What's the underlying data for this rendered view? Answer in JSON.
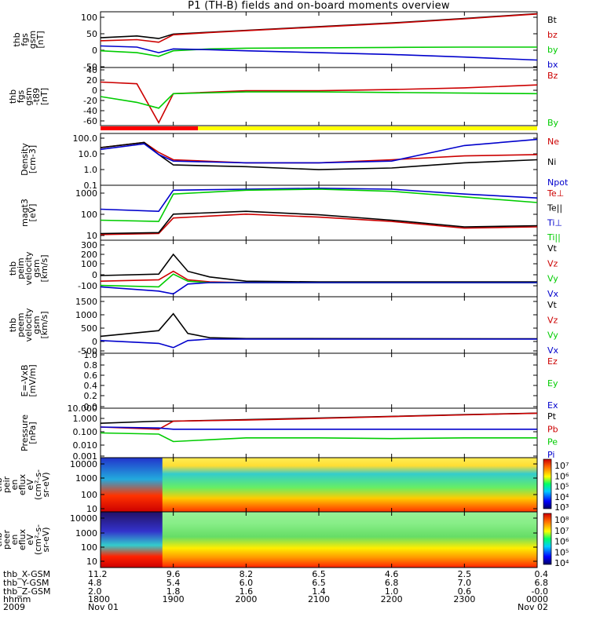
{
  "title": "P1 (TH-B) fields and on-board moments overview",
  "panels": [
    {
      "id": "fgs-gsm",
      "ylabel": [
        "thb",
        "fgs",
        "gsm",
        "[nT]"
      ],
      "yticks": [
        "100",
        "50",
        "0",
        "-50"
      ],
      "legend": [
        {
          "text": "Bt",
          "color": "#000000"
        },
        {
          "text": "bz",
          "color": "#cc0000"
        },
        {
          "text": "by",
          "color": "#00cc00"
        },
        {
          "text": "bx",
          "color": "#0000cc"
        }
      ]
    },
    {
      "id": "fgs-gsm-t89",
      "ylabel": [
        "thb",
        "fgs",
        "gsm",
        "-t89",
        "[nT]"
      ],
      "yticks": [
        "40",
        "20",
        "0",
        "-20",
        "-40",
        "-60"
      ],
      "legend": [
        {
          "text": "Bz",
          "color": "#cc0000"
        },
        {
          "text": "By",
          "color": "#00cc00"
        }
      ]
    },
    {
      "id": "density",
      "ylabel": [
        "Density",
        "[cm-3]"
      ],
      "yticks": [
        "100.0",
        "10.0",
        "1.0",
        "0.1"
      ],
      "legend": [
        {
          "text": "Ne",
          "color": "#cc0000"
        },
        {
          "text": "Ni",
          "color": "#000000"
        },
        {
          "text": "Npot",
          "color": "#0000cc"
        }
      ]
    },
    {
      "id": "temperature",
      "ylabel": [
        "magt3",
        "[eV]"
      ],
      "yticks": [
        "1000",
        "100",
        "10"
      ],
      "legend": [
        {
          "text": "Te⊥",
          "color": "#cc0000"
        },
        {
          "text": "Te||",
          "color": "#000000"
        },
        {
          "text": "Ti⊥",
          "color": "#0000cc"
        },
        {
          "text": "Ti||",
          "color": "#00cc00"
        }
      ]
    },
    {
      "id": "peim-velocity",
      "ylabel": [
        "thb",
        "peim",
        "velocity",
        "gsm",
        "[km/s]"
      ],
      "yticks": [
        "300",
        "200",
        "100",
        "0",
        "-100"
      ],
      "legend": [
        {
          "text": "Vt",
          "color": "#000000"
        },
        {
          "text": "Vz",
          "color": "#cc0000"
        },
        {
          "text": "Vy",
          "color": "#00cc00"
        },
        {
          "text": "Vx",
          "color": "#0000cc"
        }
      ]
    },
    {
      "id": "peem-velocity",
      "ylabel": [
        "thb",
        "peem",
        "velocity",
        "gsm",
        "[km/s]"
      ],
      "yticks": [
        "1500",
        "1000",
        "500",
        "0",
        "-500"
      ],
      "legend": [
        {
          "text": "Vt",
          "color": "#000000"
        },
        {
          "text": "Vz",
          "color": "#cc0000"
        },
        {
          "text": "Vy",
          "color": "#00cc00"
        },
        {
          "text": "Vx",
          "color": "#0000cc"
        }
      ]
    },
    {
      "id": "efield",
      "ylabel": [
        "E=-VxB",
        "[mV/m]"
      ],
      "yticks": [
        "1.0",
        "0.8",
        "0.6",
        "0.4",
        "0.2",
        "0.0"
      ],
      "legend": [
        {
          "text": "Ez",
          "color": "#cc0000"
        },
        {
          "text": "Ey",
          "color": "#00cc00"
        },
        {
          "text": "Ex",
          "color": "#0000cc"
        }
      ]
    },
    {
      "id": "pressure",
      "ylabel": [
        "Pressure",
        "[nPa]"
      ],
      "yticks": [
        "10.000",
        "1.000",
        "0.100",
        "0.010",
        "0.001"
      ],
      "legend": [
        {
          "text": "Pt",
          "color": "#000000"
        },
        {
          "text": "Pb",
          "color": "#cc0000"
        },
        {
          "text": "Pe",
          "color": "#00cc00"
        },
        {
          "text": "Pi",
          "color": "#0000cc"
        }
      ]
    },
    {
      "id": "peir-spectrogram",
      "ylabel": [
        "thb",
        "peir",
        "en",
        "eflux",
        "eV",
        "(cm²-s-",
        "sr-eV)"
      ],
      "yticks": [
        "10000",
        "1000",
        "100",
        "10"
      ],
      "cbticks": [
        "10⁷",
        "10⁶",
        "10⁵",
        "10⁴",
        "10³"
      ]
    },
    {
      "id": "peer-spectrogram",
      "ylabel": [
        "thb",
        "peer",
        "en",
        "eflux",
        "eV",
        "(cm²-s-",
        "sr-eV)"
      ],
      "yticks": [
        "10000",
        "1000",
        "100",
        "10"
      ],
      "cbticks": [
        "10⁸",
        "10⁷",
        "10⁶",
        "10⁵",
        "10⁴"
      ]
    }
  ],
  "footer": {
    "row_labels": [
      "thb_X-GSM",
      "thb_Y-GSM",
      "thb_Z-GSM",
      "hhmm",
      "2009"
    ],
    "columns": [
      {
        "values": [
          "11.2",
          "4.8",
          "2.0",
          "1800",
          "Nov 01"
        ]
      },
      {
        "values": [
          "9.6",
          "5.4",
          "1.8",
          "1900",
          ""
        ]
      },
      {
        "values": [
          "8.2",
          "6.0",
          "1.6",
          "2000",
          ""
        ]
      },
      {
        "values": [
          "6.5",
          "6.5",
          "1.4",
          "2100",
          ""
        ]
      },
      {
        "values": [
          "4.6",
          "6.8",
          "1.0",
          "2200",
          ""
        ]
      },
      {
        "values": [
          "2.5",
          "7.0",
          "0.6",
          "2300",
          ""
        ]
      },
      {
        "values": [
          "0.4",
          "6.8",
          "-0.0",
          "0000",
          "Nov 02"
        ]
      }
    ]
  },
  "chart_data": {
    "type": "line",
    "title": "P1 (TH-B) fields and on-board moments overview",
    "x_range": [
      "2009-11-01 18:00",
      "2009-11-02 00:00"
    ],
    "x_tick_labels": [
      "1800",
      "1900",
      "2000",
      "2100",
      "2200",
      "2300",
      "0000"
    ],
    "panels": [
      {
        "name": "fgs gsm [nT]",
        "ylim": [
          -50,
          100
        ],
        "series": [
          {
            "name": "Bt",
            "x": [
              18.0,
              18.5,
              18.8,
              19.0,
              19.5,
              20.0,
              21.0,
              22.0,
              23.0,
              24.0
            ],
            "values": [
              30,
              35,
              28,
              40,
              45,
              50,
              60,
              70,
              82,
              95
            ]
          },
          {
            "name": "bz",
            "x": [
              18.0,
              18.5,
              18.8,
              19.0,
              19.5,
              20.0,
              21.0,
              22.0,
              23.0,
              24.0
            ],
            "values": [
              22,
              25,
              18,
              38,
              44,
              49,
              59,
              69,
              81,
              94
            ]
          },
          {
            "name": "by",
            "x": [
              18.0,
              18.5,
              18.8,
              19.0,
              19.5,
              20.0,
              21.0,
              22.0,
              23.0,
              24.0
            ],
            "values": [
              -5,
              -10,
              -20,
              -5,
              0,
              2,
              3,
              4,
              5,
              5
            ]
          },
          {
            "name": "bx",
            "x": [
              18.0,
              18.5,
              18.8,
              19.0,
              19.5,
              20.0,
              21.0,
              22.0,
              23.0,
              24.0
            ],
            "values": [
              8,
              5,
              -10,
              0,
              -2,
              -5,
              -10,
              -15,
              -22,
              -30
            ]
          }
        ]
      },
      {
        "name": "fgs gsm -t89 [nT]",
        "ylim": [
          -60,
          40
        ],
        "series": [
          {
            "name": "Bz",
            "x": [
              18.0,
              18.5,
              18.8,
              19.0,
              20.0,
              21.0,
              22.0,
              23.0,
              24.0
            ],
            "values": [
              15,
              12,
              -55,
              -5,
              0,
              0,
              2,
              5,
              10
            ]
          },
          {
            "name": "By",
            "x": [
              18.0,
              18.5,
              18.8,
              19.0,
              20.0,
              21.0,
              22.0,
              23.0,
              24.0
            ],
            "values": [
              -10,
              -20,
              -30,
              -5,
              -2,
              -2,
              -3,
              -4,
              -5
            ]
          }
        ]
      },
      {
        "name": "Density [cm-3]",
        "scale": "log",
        "ylim": [
          0.1,
          100
        ],
        "series": [
          {
            "name": "Ne",
            "x": [
              18.0,
              18.6,
              18.8,
              19.0,
              20.0,
              21.0,
              22.0,
              23.0,
              24.0
            ],
            "values": [
              15,
              30,
              8,
              3,
              2,
              2,
              3,
              5,
              6
            ]
          },
          {
            "name": "Ni",
            "x": [
              18.0,
              18.6,
              18.8,
              19.0,
              20.0,
              21.0,
              22.0,
              23.0,
              24.0
            ],
            "values": [
              15,
              30,
              6,
              1.5,
              1.2,
              0.8,
              1.0,
              2.0,
              3.0
            ]
          },
          {
            "name": "Npot",
            "x": [
              18.0,
              18.6,
              18.8,
              19.0,
              20.0,
              21.0,
              22.0,
              23.0,
              24.0
            ],
            "values": [
              12,
              25,
              6,
              2.5,
              2.0,
              2.0,
              2.5,
              20,
              45
            ]
          }
        ]
      },
      {
        "name": "magt3 [eV]",
        "scale": "log",
        "ylim": [
          10,
          3000
        ],
        "series": [
          {
            "name": "Te⊥",
            "x": [
              18.0,
              18.8,
              19.0,
              20.0,
              21.0,
              22.0,
              23.0,
              24.0
            ],
            "values": [
              18,
              20,
              100,
              150,
              110,
              70,
              35,
              40
            ]
          },
          {
            "name": "Te||",
            "x": [
              18.0,
              18.8,
              19.0,
              20.0,
              21.0,
              22.0,
              23.0,
              24.0
            ],
            "values": [
              20,
              22,
              150,
              200,
              140,
              80,
              40,
              45
            ]
          },
          {
            "name": "Ti⊥",
            "x": [
              18.0,
              18.8,
              19.0,
              20.0,
              21.0,
              22.0,
              23.0,
              24.0
            ],
            "values": [
              250,
              200,
              1800,
              2000,
              2200,
              2000,
              1200,
              800
            ]
          },
          {
            "name": "Ti||",
            "x": [
              18.0,
              18.8,
              19.0,
              20.0,
              21.0,
              22.0,
              23.0,
              24.0
            ],
            "values": [
              80,
              70,
              1200,
              1800,
              2000,
              1600,
              900,
              500
            ]
          }
        ]
      },
      {
        "name": "peim velocity gsm [km/s]",
        "ylim": [
          -100,
          300
        ],
        "series": [
          {
            "name": "Vt",
            "x": [
              18.0,
              18.8,
              19.0,
              19.2,
              19.5,
              20.0,
              21.0,
              24.0
            ],
            "values": [
              50,
              60,
              200,
              80,
              40,
              10,
              5,
              5
            ]
          },
          {
            "name": "Vz",
            "x": [
              18.0,
              18.8,
              19.0,
              19.2,
              19.5,
              20.0,
              21.0,
              24.0
            ],
            "values": [
              10,
              20,
              80,
              20,
              5,
              0,
              0,
              0
            ]
          },
          {
            "name": "Vy",
            "x": [
              18.0,
              18.8,
              19.0,
              19.2,
              19.5,
              20.0,
              21.0,
              24.0
            ],
            "values": [
              -20,
              -30,
              60,
              10,
              0,
              0,
              0,
              0
            ]
          },
          {
            "name": "Vx",
            "x": [
              18.0,
              18.8,
              19.0,
              19.2,
              19.5,
              20.0,
              21.0,
              24.0
            ],
            "values": [
              -30,
              -60,
              -80,
              -10,
              0,
              0,
              0,
              0
            ]
          }
        ]
      },
      {
        "name": "peem velocity gsm [km/s]",
        "ylim": [
          -500,
          1500
        ],
        "series": [
          {
            "name": "Vt",
            "x": [
              18.0,
              18.8,
              19.0,
              19.2,
              19.5,
              20.0,
              24.0
            ],
            "values": [
              100,
              300,
              900,
              200,
              50,
              20,
              10
            ]
          },
          {
            "name": "Vx",
            "x": [
              18.0,
              18.8,
              19.0,
              19.2,
              19.5,
              20.0,
              24.0
            ],
            "values": [
              -50,
              -150,
              -300,
              -50,
              0,
              0,
              0
            ]
          }
        ]
      },
      {
        "name": "E=-VxB [mV/m]",
        "ylim": [
          0,
          1
        ],
        "series": []
      },
      {
        "name": "Pressure [nPa]",
        "scale": "log",
        "ylim": [
          0.001,
          10
        ],
        "series": [
          {
            "name": "Pt",
            "x": [
              18.0,
              18.8,
              19.0,
              20.0,
              21.0,
              22.0,
              23.0,
              24.0
            ],
            "values": [
              0.6,
              0.9,
              0.9,
              1.2,
              1.6,
              2.2,
              3.0,
              4.0
            ]
          },
          {
            "name": "Pb",
            "x": [
              18.0,
              18.8,
              19.0,
              20.0,
              21.0,
              22.0,
              23.0,
              24.0
            ],
            "values": [
              0.3,
              0.2,
              0.9,
              1.1,
              1.5,
              2.1,
              2.9,
              3.9
            ]
          },
          {
            "name": "Pe",
            "x": [
              18.0,
              18.8,
              19.0,
              20.0,
              21.0,
              22.0,
              23.0,
              24.0
            ],
            "values": [
              0.1,
              0.08,
              0.02,
              0.04,
              0.04,
              0.035,
              0.04,
              0.04
            ]
          },
          {
            "name": "Pi",
            "x": [
              18.0,
              18.8,
              19.0,
              20.0,
              21.0,
              22.0,
              23.0,
              24.0
            ],
            "values": [
              0.3,
              0.25,
              0.2,
              0.2,
              0.2,
              0.2,
              0.2,
              0.2
            ]
          }
        ]
      }
    ]
  }
}
